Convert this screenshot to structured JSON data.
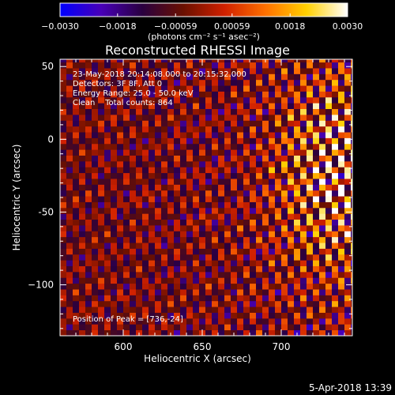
{
  "chart_data": {
    "type": "heatmap",
    "title": "Reconstructed RHESSI Image",
    "xlabel": "Heliocentric X (arcsec)",
    "ylabel": "Heliocentric Y (arcsec)",
    "xlim": [
      560,
      745
    ],
    "ylim": [
      -135,
      55
    ],
    "x_ticks": [
      {
        "value": 600,
        "label": "600"
      },
      {
        "value": 650,
        "label": "650"
      },
      {
        "value": 700,
        "label": "700"
      }
    ],
    "y_ticks": [
      {
        "value": 50,
        "label": "50"
      },
      {
        "value": 0,
        "label": "0"
      },
      {
        "value": -50,
        "label": "-50"
      },
      {
        "value": -100,
        "label": "−100"
      }
    ],
    "colorbar": {
      "range": [
        -0.003,
        0.003
      ],
      "ticks": [
        {
          "value": -0.003,
          "label": "−0.0030"
        },
        {
          "value": -0.0018,
          "label": "−0.0018"
        },
        {
          "value": -0.00059,
          "label": "−0.00059"
        },
        {
          "value": 0.00059,
          "label": "0.00059"
        },
        {
          "value": 0.0018,
          "label": "0.0018"
        },
        {
          "value": 0.003,
          "label": "0.0030"
        }
      ],
      "unit_label": "(photons cm⁻² s⁻¹ asec⁻²)",
      "colors": [
        "#0000ff",
        "#4800b8",
        "#2a0040",
        "#6a1000",
        "#d02000",
        "#ff7000",
        "#ffd000",
        "#ffffff"
      ]
    },
    "annotations": [
      "23-May-2018 20:14:08.000 to 20:15:32.000",
      "Detectors: 3F 8F, Att 0",
      "Energy Range: 25.0 - 50.0 keV",
      "Clean    Total counts: 864",
      "Position of Peak = [736,-24]"
    ],
    "peak": {
      "x": 736,
      "y": -24
    },
    "pixel_size_arcsec": 4,
    "pattern": "diagonal fringe stripes, brightest toward upper right"
  },
  "footer": {
    "date": "5-Apr-2018 13:39"
  }
}
